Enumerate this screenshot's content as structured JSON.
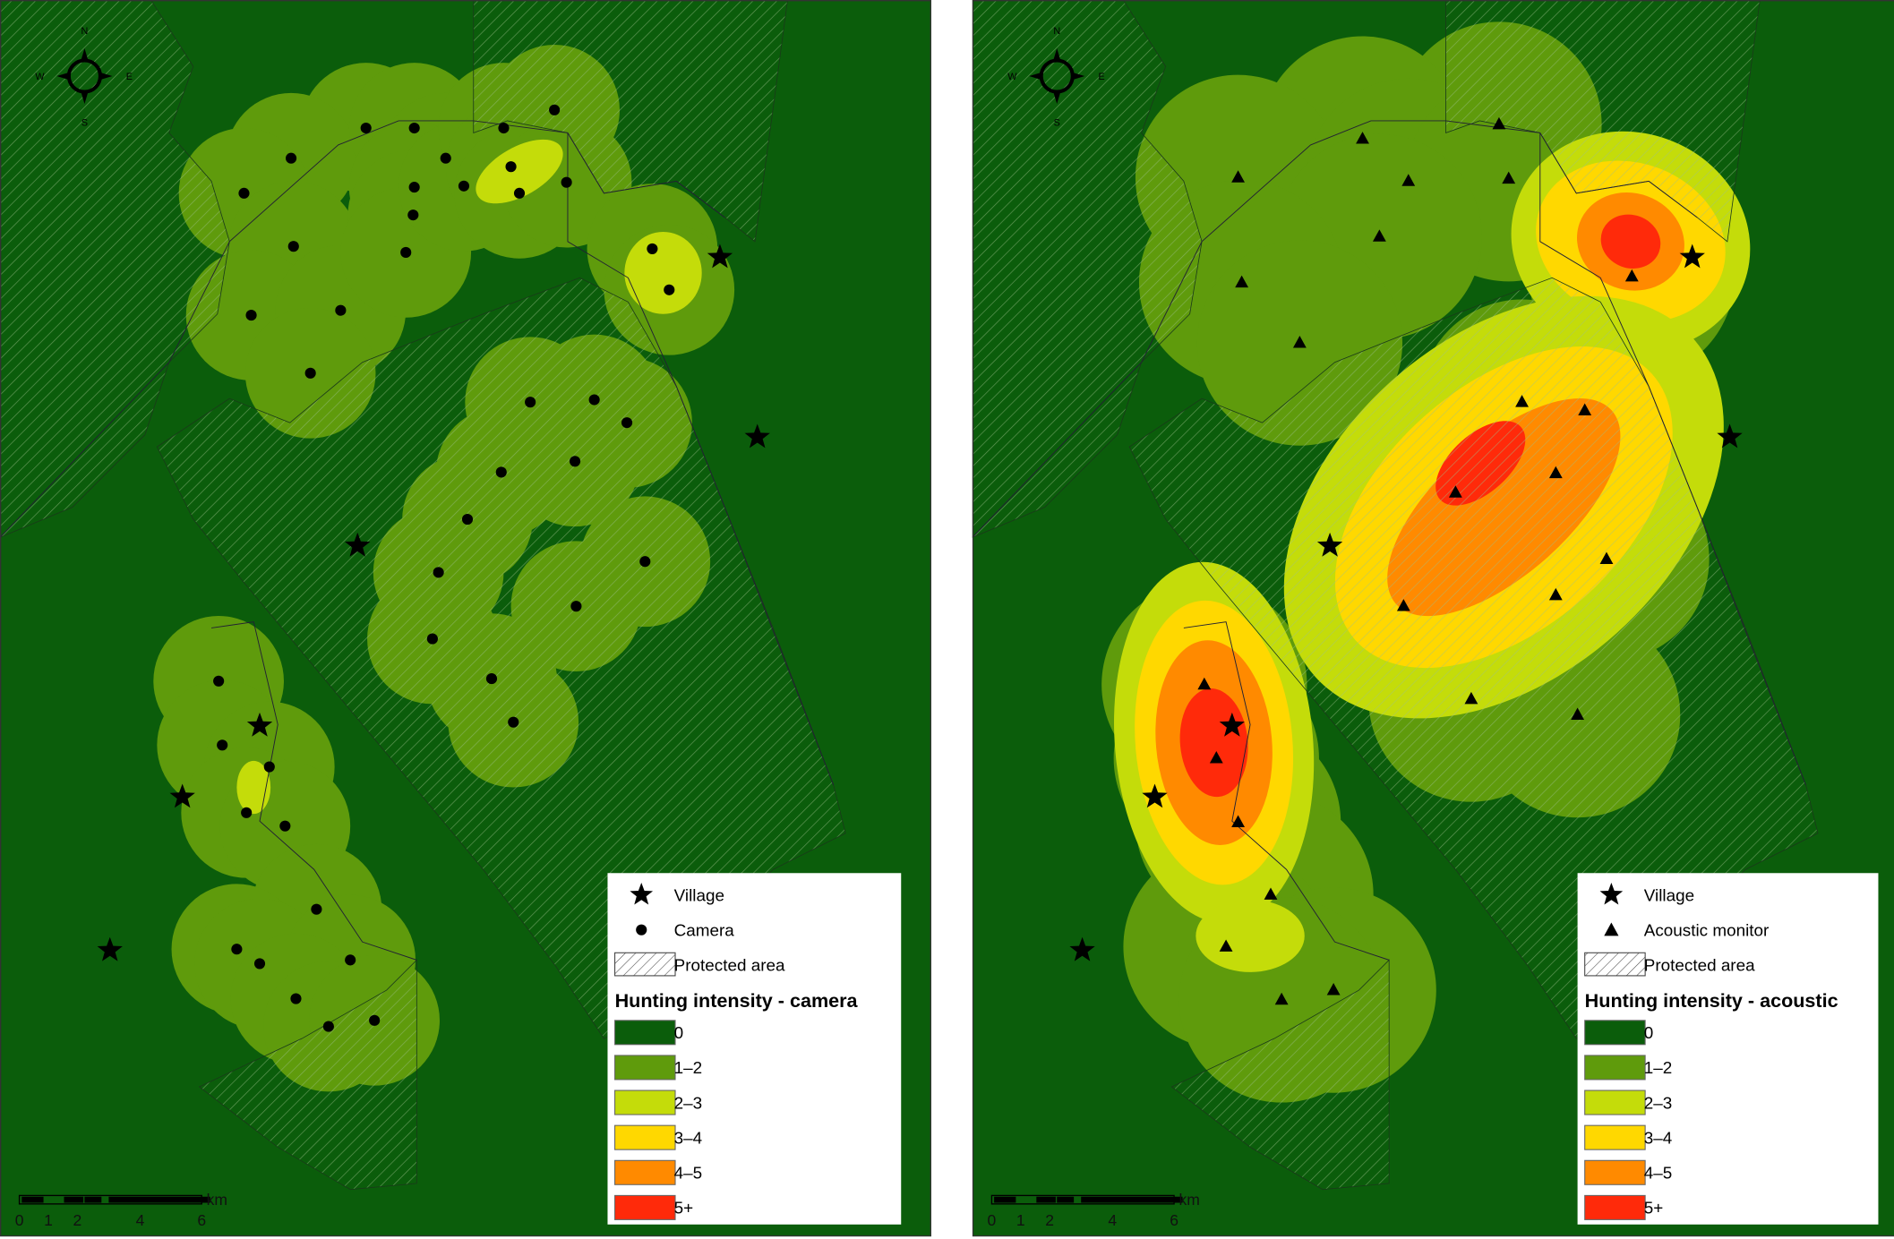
{
  "colors": {
    "c0": "#0b5d0b",
    "c1": "#5f9b0c",
    "c2": "#c4dc0a",
    "c3": "#ffd800",
    "c4": "#ff8a00",
    "c5": "#ff2a0a"
  },
  "compass": {
    "n": "N",
    "s": "S",
    "e": "E",
    "w": "W"
  },
  "scale": {
    "unit": "km",
    "ticks": [
      "0",
      "1",
      "2",
      "4",
      "6"
    ]
  },
  "panels": [
    {
      "legend": {
        "village": "Village",
        "sensor": "Camera",
        "protected": "Protected area",
        "title": "Hunting intensity - camera",
        "classes": [
          "0",
          "1–2",
          "2–3",
          "3–4",
          "4–5",
          "5+"
        ]
      }
    },
    {
      "legend": {
        "village": "Village",
        "sensor": "Acoustic monitor",
        "protected": "Protected area",
        "title": "Hunting intensity - acoustic",
        "classes": [
          "0",
          "1–2",
          "2–3",
          "3–4",
          "4–5",
          "5+"
        ]
      }
    }
  ]
}
